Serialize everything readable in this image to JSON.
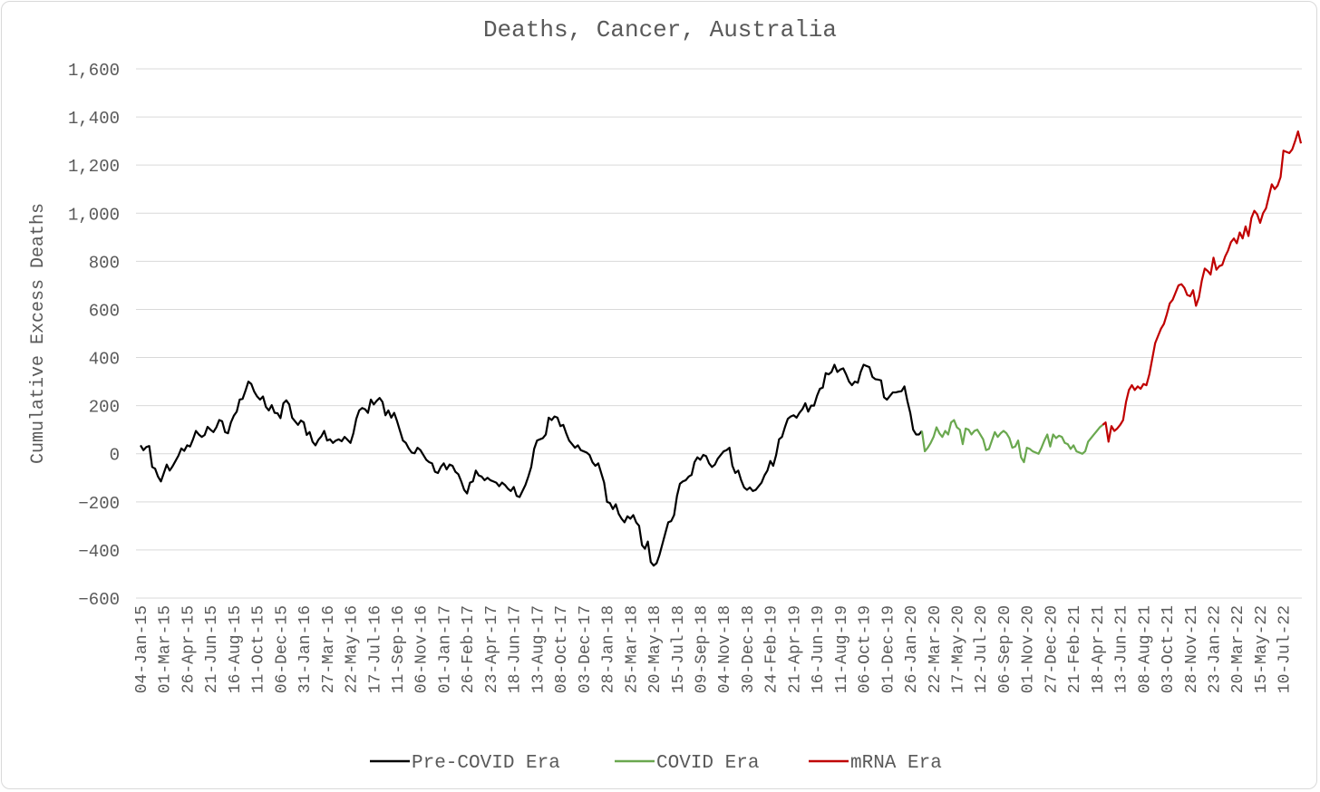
{
  "chart_data": {
    "type": "line",
    "title": "Deaths, Cancer, Australia",
    "xlabel": "",
    "ylabel": "Cumulative Excess Deaths",
    "ylim": [
      -600,
      1600
    ],
    "yticks": [
      -600,
      -400,
      -200,
      0,
      200,
      400,
      600,
      800,
      1000,
      1200,
      1400,
      1600
    ],
    "ytick_labels": [
      "−600",
      "−400",
      "−200",
      "0",
      "200",
      "400",
      "600",
      "800",
      "1,000",
      "1,200",
      "1,400",
      "1,600"
    ],
    "xtick_labels": [
      "04-Jan-15",
      "01-Mar-15",
      "26-Apr-15",
      "21-Jun-15",
      "16-Aug-15",
      "11-Oct-15",
      "06-Dec-15",
      "31-Jan-16",
      "27-Mar-16",
      "22-May-16",
      "17-Jul-16",
      "11-Sep-16",
      "06-Nov-16",
      "01-Jan-17",
      "26-Feb-17",
      "23-Apr-17",
      "18-Jun-17",
      "13-Aug-17",
      "08-Oct-17",
      "03-Dec-17",
      "28-Jan-18",
      "25-Mar-18",
      "20-May-18",
      "15-Jul-18",
      "09-Sep-18",
      "04-Nov-18",
      "30-Dec-18",
      "24-Feb-19",
      "21-Apr-19",
      "16-Jun-19",
      "11-Aug-19",
      "06-Oct-19",
      "01-Dec-19",
      "26-Jan-20",
      "22-Mar-20",
      "17-May-20",
      "12-Jul-20",
      "06-Sep-20",
      "01-Nov-20",
      "27-Dec-20",
      "21-Feb-21",
      "18-Apr-21",
      "13-Jun-21",
      "08-Aug-21",
      "03-Oct-21",
      "28-Nov-21",
      "23-Jan-22",
      "20-Mar-22",
      "15-May-22",
      "10-Jul-22"
    ],
    "grid": true,
    "legend_position": "bottom",
    "colors": {
      "pre": "#000000",
      "covid": "#6aa84f",
      "mrna": "#c00000"
    },
    "series": [
      {
        "name": "Pre-COVID Era",
        "x_start": "04-Jan-15",
        "interval_weeks": 1,
        "values": [
          35,
          15,
          28,
          32,
          -55,
          -62,
          -95,
          -115,
          -80,
          -45,
          -70,
          -52,
          -30,
          -8,
          22,
          12,
          35,
          30,
          60,
          95,
          80,
          70,
          78,
          112,
          100,
          90,
          110,
          140,
          135,
          90,
          85,
          130,
          158,
          175,
          225,
          228,
          262,
          300,
          290,
          258,
          238,
          225,
          238,
          195,
          180,
          202,
          170,
          168,
          148,
          210,
          222,
          205,
          150,
          135,
          120,
          138,
          130,
          78,
          90,
          50,
          35,
          58,
          72,
          95,
          55,
          60,
          45,
          55,
          60,
          52,
          70,
          58,
          45,
          85,
          145,
          180,
          190,
          185,
          170,
          225,
          205,
          220,
          232,
          215,
          160,
          180,
          150,
          170,
          135,
          95,
          55,
          45,
          22,
          5,
          2,
          25,
          15,
          -5,
          -25,
          -35,
          -40,
          -75,
          -80,
          -55,
          -40,
          -65,
          -45,
          -50,
          -75,
          -85,
          -115,
          -150,
          -165,
          -120,
          -115,
          -70,
          -90,
          -95,
          -110,
          -100,
          -110,
          -115,
          -120,
          -135,
          -120,
          -130,
          -145,
          -155,
          -138,
          -175,
          -180,
          -155,
          -130,
          -95,
          -55,
          20,
          55,
          60,
          65,
          80,
          150,
          140,
          155,
          150,
          115,
          120,
          85,
          55,
          40,
          25,
          35,
          15,
          10,
          5,
          -5,
          -35,
          -50,
          -40,
          -80,
          -120,
          -200,
          -205,
          -230,
          -210,
          -250,
          -270,
          -285,
          -260,
          -270,
          -255,
          -285,
          -300,
          -380,
          -395,
          -365,
          -450,
          -465,
          -455,
          -420,
          -375,
          -330,
          -285,
          -280,
          -255,
          -175,
          -125,
          -115,
          -110,
          -95,
          -88,
          -35,
          -15,
          -25,
          -5,
          -10,
          -40,
          -55,
          -45,
          -20,
          -5,
          10,
          15,
          25,
          -50,
          -80,
          -70,
          -110,
          -140,
          -150,
          -140,
          -155,
          -150,
          -135,
          -120,
          -90,
          -70,
          -30,
          -50,
          -5,
          60,
          70,
          110,
          145,
          155,
          160,
          150,
          170,
          185,
          210,
          175,
          200,
          200,
          240,
          270,
          275,
          335,
          330,
          340,
          370,
          340,
          350,
          355,
          330,
          300,
          285,
          300,
          295,
          340,
          370,
          365,
          360,
          320,
          310,
          308,
          305,
          235,
          225,
          240,
          255,
          255,
          258,
          260,
          280,
          220,
          170,
          100,
          80,
          80,
          95
        ]
      },
      {
        "name": "COVID Era",
        "x_start": "26-Jan-20",
        "interval_weeks": 1,
        "values": [
          95,
          10,
          25,
          45,
          70,
          110,
          85,
          70,
          95,
          80,
          130,
          140,
          110,
          100,
          40,
          105,
          100,
          80,
          95,
          100,
          80,
          60,
          15,
          20,
          55,
          90,
          70,
          85,
          95,
          85,
          65,
          25,
          30,
          55,
          -15,
          -35,
          25,
          20,
          10,
          5,
          0,
          25,
          55,
          80,
          30,
          80,
          65,
          75,
          70,
          45,
          40,
          20,
          35,
          10,
          5,
          0,
          10,
          50,
          65,
          80,
          95,
          110,
          120
        ]
      },
      {
        "name": "mRNA Era",
        "x_start": "18-Apr-21",
        "interval_weeks": 1,
        "values": [
          120,
          130,
          50,
          115,
          95,
          105,
          120,
          140,
          215,
          265,
          285,
          265,
          280,
          270,
          290,
          285,
          330,
          395,
          460,
          490,
          520,
          540,
          580,
          625,
          640,
          670,
          700,
          705,
          690,
          660,
          655,
          680,
          615,
          650,
          720,
          770,
          760,
          745,
          815,
          765,
          780,
          785,
          820,
          845,
          880,
          895,
          875,
          920,
          895,
          945,
          905,
          980,
          1010,
          995,
          960,
          1000,
          1020,
          1070,
          1120,
          1100,
          1115,
          1150,
          1260,
          1255,
          1250,
          1265,
          1300,
          1340,
          1290
        ]
      }
    ]
  }
}
